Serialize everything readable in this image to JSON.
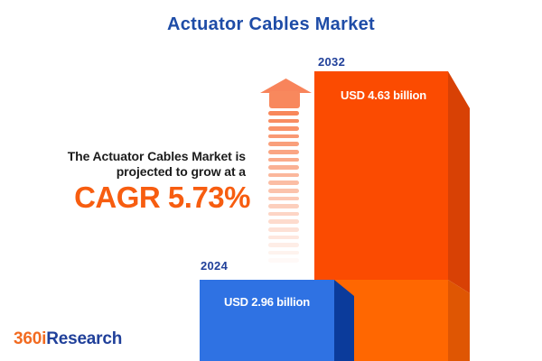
{
  "title": "Actuator Cables Market",
  "description": {
    "line1": "The Actuator Cables Market is",
    "line2": "projected to grow at a",
    "cagr": "CAGR 5.73%"
  },
  "bars": [
    {
      "year": "2024",
      "label": "USD 2.96 billion"
    },
    {
      "year": "2032",
      "label": "USD 4.63 billion"
    }
  ],
  "logo": {
    "part1": "360i",
    "part2": "Research"
  },
  "colors": {
    "title_blue": "#1E4CA7",
    "cagr_orange": "#F75D10",
    "text_dark": "#1C1C1C",
    "value_text": "#FFFFFF",
    "bar_2024_front": "#2F72E3",
    "bar_2024_side": "#0B3B9B",
    "bar_2032_front": "#FB4B01",
    "bar_2032_front_lower": "#FF6701",
    "bar_2032_side": "#D84105",
    "bar_2032_side_lower": "#DF5603",
    "arrow_salmon": "#F8875A",
    "logo_orange": "#F26B21",
    "logo_blue": "#20409A"
  },
  "chart_data": {
    "type": "bar",
    "title": "Actuator Cables Market",
    "unit": "USD billion",
    "categories": [
      "2024",
      "2032"
    ],
    "values": [
      2.96,
      4.63
    ],
    "value_labels": [
      "USD 2.96 billion",
      "USD 4.63 billion"
    ],
    "cagr_percent": 5.73,
    "annotation": "The Actuator Cables Market is projected to grow at a CAGR 5.73%",
    "bar_colors": [
      "#2F72E3",
      "#FB4B01"
    ],
    "grid": false,
    "legend_position": "none",
    "axes_shown": false
  }
}
